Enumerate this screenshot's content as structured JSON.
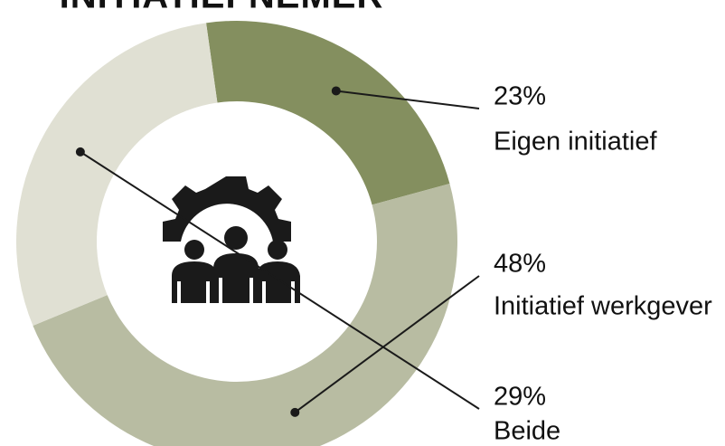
{
  "chart_data": {
    "type": "donut",
    "title": "INITIATIEFNEMER",
    "categories": [
      "Eigen initiatief",
      "Initiatief werkgever",
      "Beide"
    ],
    "values": [
      23,
      48,
      29
    ],
    "value_labels": [
      "23%",
      "48%",
      "29%"
    ],
    "colors": [
      "#848f5f",
      "#b8bca2",
      "#e0e0d3"
    ]
  }
}
